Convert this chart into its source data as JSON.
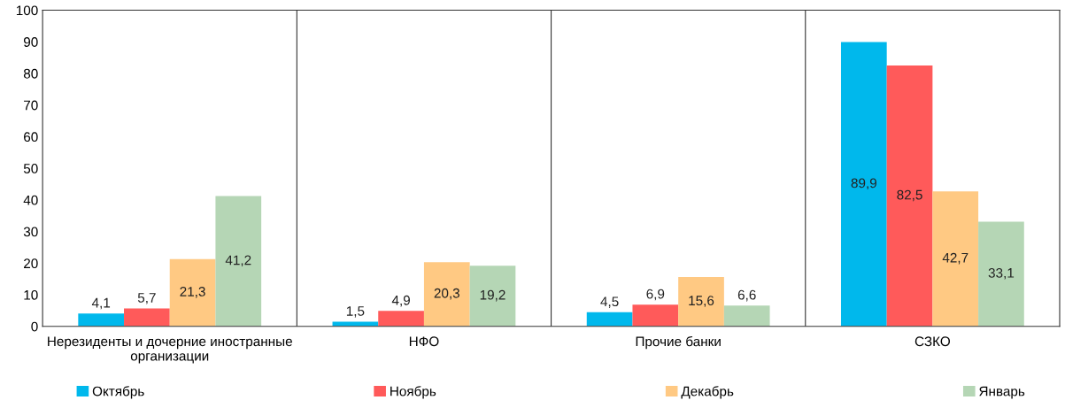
{
  "chart_data": {
    "type": "bar",
    "categories": [
      "Нерезиденты и дочерние иностранные организации",
      "НФО",
      "Прочие банки",
      "СЗКО"
    ],
    "series": [
      {
        "name": "Октябрь",
        "color": "#00b8ec",
        "values": [
          4.1,
          1.5,
          4.5,
          89.9
        ],
        "value_labels": [
          "4,1",
          "1,5",
          "4,5",
          "89,9"
        ]
      },
      {
        "name": "Ноябрь",
        "color": "#ff5a5a",
        "values": [
          5.7,
          4.9,
          6.9,
          82.5
        ],
        "value_labels": [
          "5,7",
          "4,9",
          "6,9",
          "82,5"
        ]
      },
      {
        "name": "Декабрь",
        "color": "#ffc983",
        "values": [
          21.3,
          20.3,
          15.6,
          42.7
        ],
        "value_labels": [
          "21,3",
          "20,3",
          "15,6",
          "42,7"
        ]
      },
      {
        "name": "Январь",
        "color": "#b5d6b5",
        "values": [
          41.2,
          19.2,
          6.6,
          33.1
        ],
        "value_labels": [
          "41,2",
          "19,2",
          "6,6",
          "33,1"
        ]
      }
    ],
    "ylim": [
      0,
      100
    ],
    "yticks": [
      0,
      10,
      20,
      30,
      40,
      50,
      60,
      70,
      80,
      90,
      100
    ],
    "grid": "x",
    "legend": "bottom"
  }
}
